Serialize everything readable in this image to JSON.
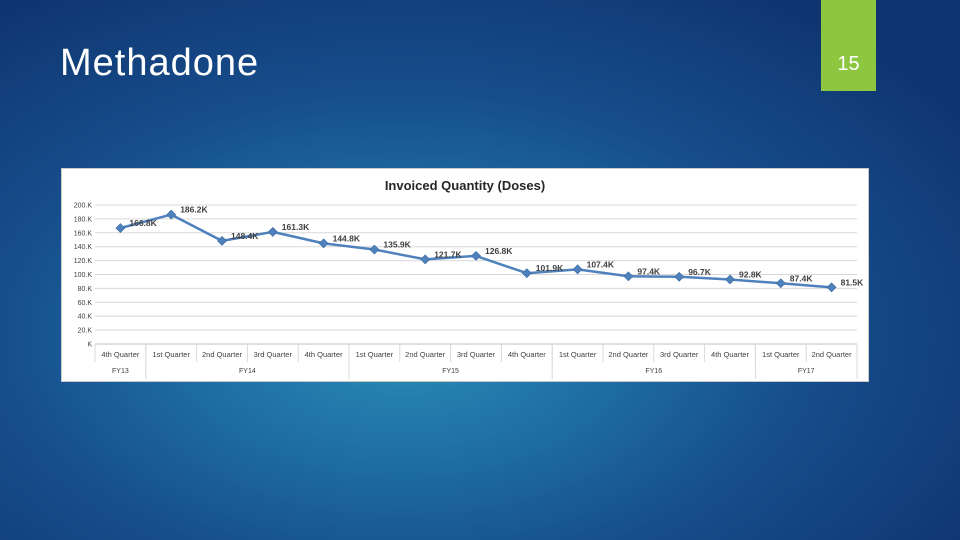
{
  "slide": {
    "title": "Methadone",
    "page_number": "15"
  },
  "colors": {
    "accent_tab": "#8dc63f",
    "line": "#4f81bd"
  },
  "chart_data": {
    "type": "line",
    "title": "Invoiced Quantity (Doses)",
    "xlabel": "",
    "ylabel": "",
    "ylim": [
      0,
      200
    ],
    "y_ticks": [
      "200.K",
      "180.K",
      "160.K",
      "140.K",
      "120.K",
      "100.K",
      "80.K",
      "60.K",
      "40.K",
      "20.K",
      "K"
    ],
    "y_tick_values": [
      200,
      180,
      160,
      140,
      120,
      100,
      80,
      60,
      40,
      20,
      0
    ],
    "categories": [
      "4th Quarter",
      "1st Quarter",
      "2nd Quarter",
      "3rd Quarter",
      "4th Quarter",
      "1st Quarter",
      "2nd Quarter",
      "3rd Quarter",
      "4th Quarter",
      "1st Quarter",
      "2nd Quarter",
      "3rd Quarter",
      "4th Quarter",
      "1st Quarter",
      "2nd Quarter"
    ],
    "groups": [
      {
        "label": "FY13",
        "count": 1
      },
      {
        "label": "FY14",
        "count": 4
      },
      {
        "label": "FY15",
        "count": 4
      },
      {
        "label": "FY16",
        "count": 4
      },
      {
        "label": "FY17",
        "count": 2
      }
    ],
    "series": [
      {
        "values": [
          166.8,
          186.2,
          148.4,
          161.3,
          144.8,
          135.9,
          121.7,
          126.8,
          101.9,
          107.4,
          97.4,
          96.7,
          92.8,
          87.4,
          81.5
        ],
        "labels": [
          "166.8K",
          "186.2K",
          "148.4K",
          "161.3K",
          "144.8K",
          "135.9K",
          "121.7K",
          "126.8K",
          "101.9K",
          "107.4K",
          "97.4K",
          "96.7K",
          "92.8K",
          "87.4K",
          "81.5K"
        ]
      }
    ],
    "grid": true,
    "legend": "none"
  }
}
